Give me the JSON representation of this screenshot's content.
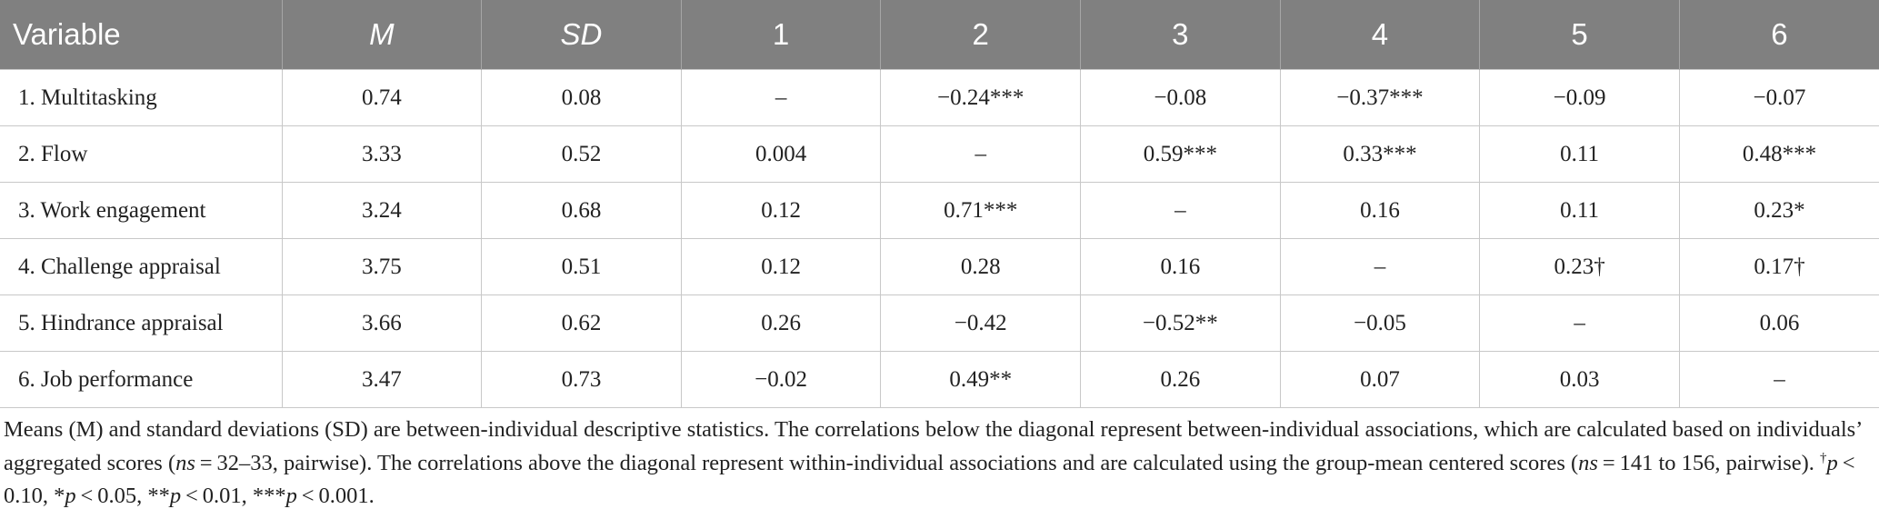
{
  "table": {
    "header": [
      "Variable",
      "M",
      "SD",
      "1",
      "2",
      "3",
      "4",
      "5",
      "6"
    ],
    "rows": [
      [
        "1. Multitasking",
        "0.74",
        "0.08",
        "–",
        "−0.24***",
        "−0.08",
        "−0.37***",
        "−0.09",
        "−0.07"
      ],
      [
        "2. Flow",
        "3.33",
        "0.52",
        "0.004",
        "–",
        "0.59***",
        "0.33***",
        "0.11",
        "0.48***"
      ],
      [
        "3. Work engagement",
        "3.24",
        "0.68",
        "0.12",
        "0.71***",
        "–",
        "0.16",
        "0.11",
        "0.23*"
      ],
      [
        "4. Challenge appraisal",
        "3.75",
        "0.51",
        "0.12",
        "0.28",
        "0.16",
        "–",
        "0.23†",
        "0.17†"
      ],
      [
        "5. Hindrance appraisal",
        "3.66",
        "0.62",
        "0.26",
        "−0.42",
        "−0.52**",
        "−0.05",
        "–",
        "0.06"
      ],
      [
        "6. Job performance",
        "3.47",
        "0.73",
        "−0.02",
        "0.49**",
        "0.26",
        "0.07",
        "0.03",
        "–"
      ]
    ]
  },
  "note": [
    "Means (M) and standard deviations (SD) are between-individual descriptive statistics. The correlations below the diagonal represent between-individual associations, which are calculated based on individuals’ aggregated scores (",
    "ns",
    " = 32–33, pairwise). The correlations above the diagonal represent within-individual associations and are calculated using the group-mean centered scores (",
    "ns",
    " = 141 to 156, pairwise). ",
    "†",
    "p",
    " < 0.10, *",
    "p",
    " < 0.05, **",
    "p",
    " < 0.01, ***",
    "p",
    " < 0.001."
  ]
}
